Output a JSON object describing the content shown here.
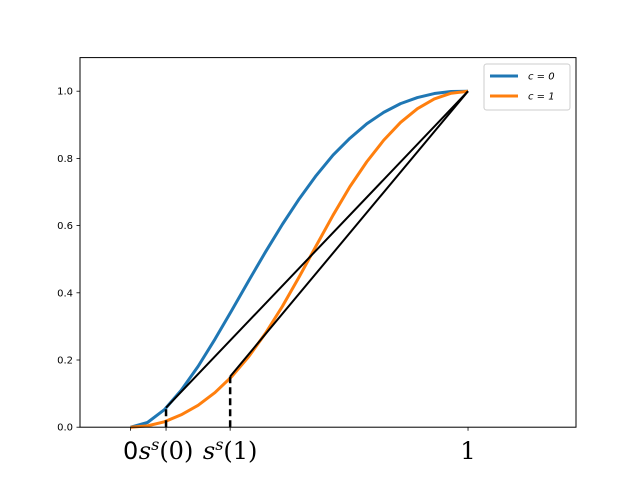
{
  "chart_data": {
    "type": "line",
    "title": "",
    "xlabel": "",
    "ylabel": "",
    "xlim": [
      -0.15,
      1.32
    ],
    "ylim": [
      0,
      1.1
    ],
    "grid": false,
    "legend_position": "top-right",
    "y_ticks": [
      {
        "value": 0.0,
        "label": "0.0"
      },
      {
        "value": 0.2,
        "label": "0.2"
      },
      {
        "value": 0.4,
        "label": "0.4"
      },
      {
        "value": 0.6,
        "label": "0.6"
      },
      {
        "value": 0.8,
        "label": "0.8"
      },
      {
        "value": 1.0,
        "label": "1.0"
      }
    ],
    "x_ticks": [
      {
        "value": 0.0,
        "label": "0"
      },
      {
        "value": 0.105,
        "label": "s^s(0)"
      },
      {
        "value": 0.295,
        "label": "s^s(1)"
      },
      {
        "value": 1.0,
        "label": "1"
      }
    ],
    "series": [
      {
        "name": "c = 0",
        "color": "#1f77b4",
        "x": [
          0,
          0.05,
          0.1,
          0.15,
          0.2,
          0.25,
          0.3,
          0.35,
          0.4,
          0.45,
          0.5,
          0.55,
          0.6,
          0.65,
          0.7,
          0.75,
          0.8,
          0.85,
          0.9,
          0.95,
          1.0
        ],
        "y": [
          0,
          0.014,
          0.052,
          0.11,
          0.181,
          0.262,
          0.348,
          0.436,
          0.522,
          0.604,
          0.68,
          0.749,
          0.81,
          0.86,
          0.903,
          0.937,
          0.963,
          0.981,
          0.993,
          0.999,
          1.0
        ]
      },
      {
        "name": "c = 1",
        "color": "#ff7f0e",
        "x": [
          0,
          0.05,
          0.1,
          0.15,
          0.2,
          0.25,
          0.3,
          0.35,
          0.4,
          0.45,
          0.5,
          0.55,
          0.6,
          0.65,
          0.7,
          0.75,
          0.8,
          0.85,
          0.9,
          0.95,
          1.0
        ],
        "y": [
          0,
          0.004,
          0.016,
          0.037,
          0.065,
          0.103,
          0.151,
          0.21,
          0.28,
          0.36,
          0.448,
          0.54,
          0.631,
          0.716,
          0.79,
          0.854,
          0.907,
          0.948,
          0.977,
          0.994,
          1.0
        ]
      }
    ],
    "tangent_lines": [
      {
        "from": [
          0.105,
          0.058
        ],
        "to": [
          1.0,
          1.0
        ],
        "color": "#000000"
      },
      {
        "from": [
          0.295,
          0.151
        ],
        "to": [
          1.0,
          1.0
        ],
        "color": "#000000"
      }
    ],
    "dashed_lines": [
      {
        "x": 0.105,
        "y_top": 0.058,
        "color": "#000000"
      },
      {
        "x": 0.295,
        "y_top": 0.151,
        "color": "#000000"
      }
    ]
  }
}
